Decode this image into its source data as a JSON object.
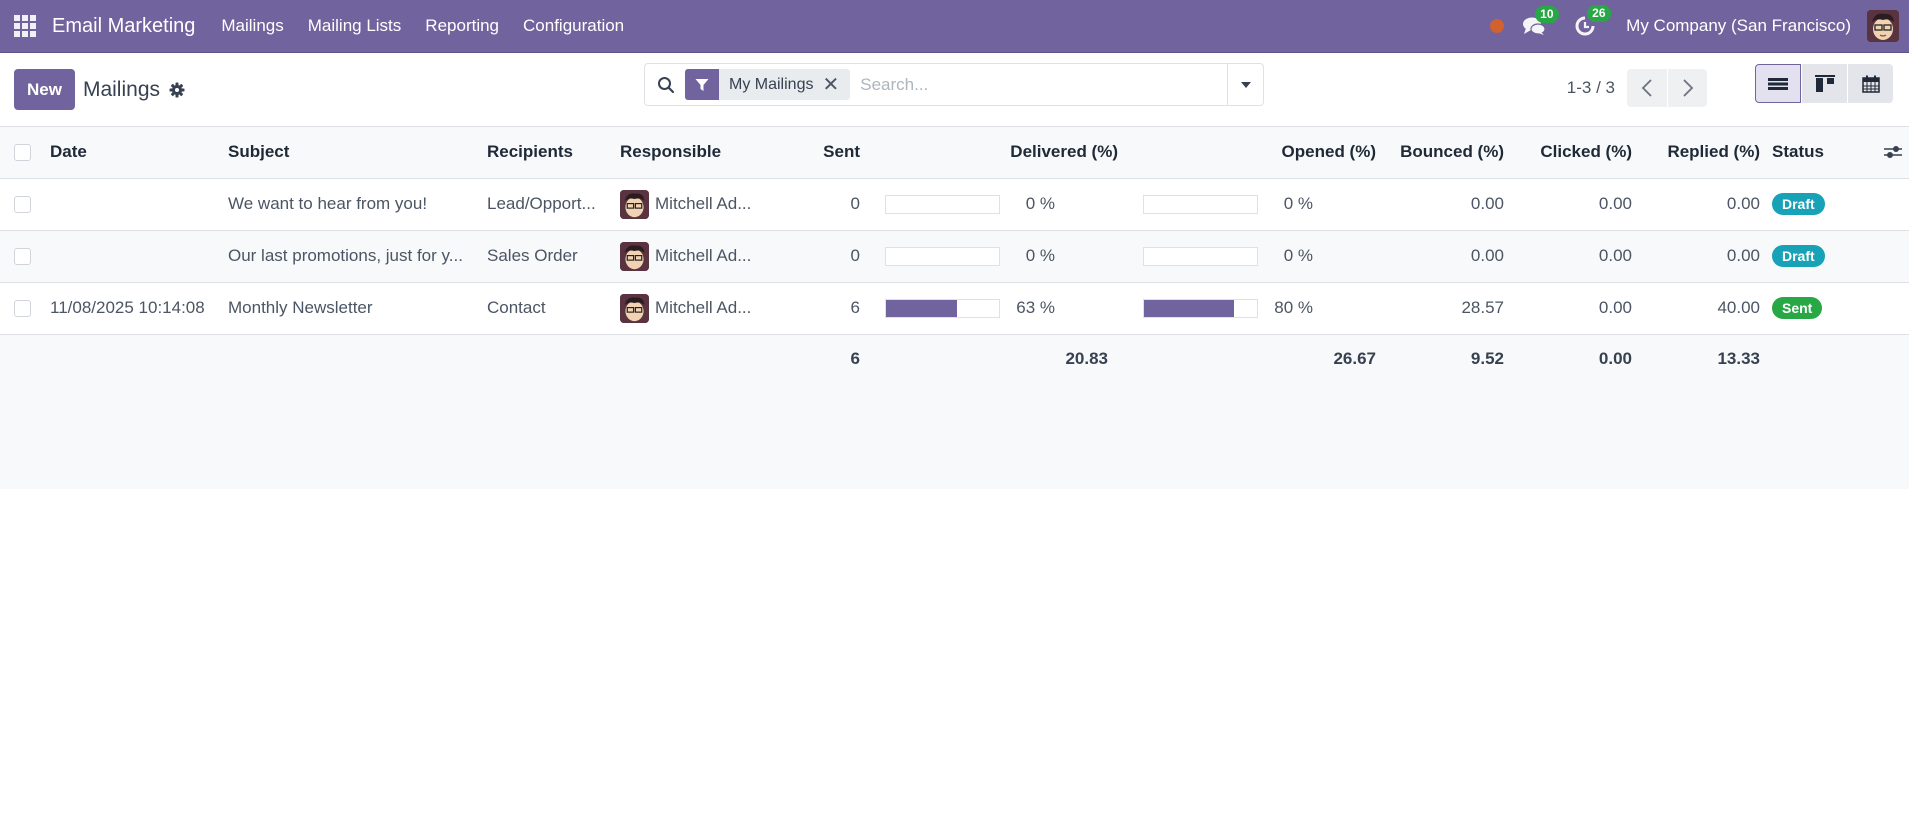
{
  "navbar": {
    "app_name": "Email Marketing",
    "menu": [
      "Mailings",
      "Mailing Lists",
      "Reporting",
      "Configuration"
    ],
    "messages_count": "10",
    "activities_count": "26",
    "company": "My Company (San Francisco)",
    "status_color": "#d0622f",
    "brand_color": "#71639e"
  },
  "control": {
    "new_label": "New",
    "title": "Mailings",
    "search": {
      "facet_label": "My Mailings",
      "placeholder": "Search..."
    },
    "pager": "1-3 / 3",
    "views": [
      "list",
      "kanban",
      "calendar"
    ],
    "active_view": "list"
  },
  "table": {
    "columns": [
      "Date",
      "Subject",
      "Recipients",
      "Responsible",
      "Sent",
      "Delivered (%)",
      "Opened (%)",
      "Bounced (%)",
      "Clicked (%)",
      "Replied (%)",
      "Status"
    ],
    "rows": [
      {
        "date": "",
        "subject": "We want to hear from you!",
        "recipients": "Lead/Opport...",
        "responsible": "Mitchell Ad...",
        "sent": "0",
        "delivered_pct": 0,
        "delivered": "0 %",
        "opened_pct": 0,
        "opened": "0 %",
        "bounced": "0.00",
        "clicked": "0.00",
        "replied": "0.00",
        "status": "Draft"
      },
      {
        "date": "",
        "subject": "Our last promotions, just for y...",
        "recipients": "Sales Order",
        "responsible": "Mitchell Ad...",
        "sent": "0",
        "delivered_pct": 0,
        "delivered": "0 %",
        "opened_pct": 0,
        "opened": "0 %",
        "bounced": "0.00",
        "clicked": "0.00",
        "replied": "0.00",
        "status": "Draft"
      },
      {
        "date": "11/08/2025 10:14:08",
        "subject": "Monthly Newsletter",
        "recipients": "Contact",
        "responsible": "Mitchell Ad...",
        "sent": "6",
        "delivered_pct": 63,
        "delivered": "63 %",
        "opened_pct": 80,
        "opened": "80 %",
        "bounced": "28.57",
        "clicked": "0.00",
        "replied": "40.00",
        "status": "Sent"
      }
    ],
    "totals": {
      "sent": "6",
      "delivered": "20.83",
      "opened": "26.67",
      "bounced": "9.52",
      "clicked": "0.00",
      "replied": "13.33"
    },
    "status_colors": {
      "Draft": "#17a2b8",
      "Sent": "#28a745"
    }
  }
}
